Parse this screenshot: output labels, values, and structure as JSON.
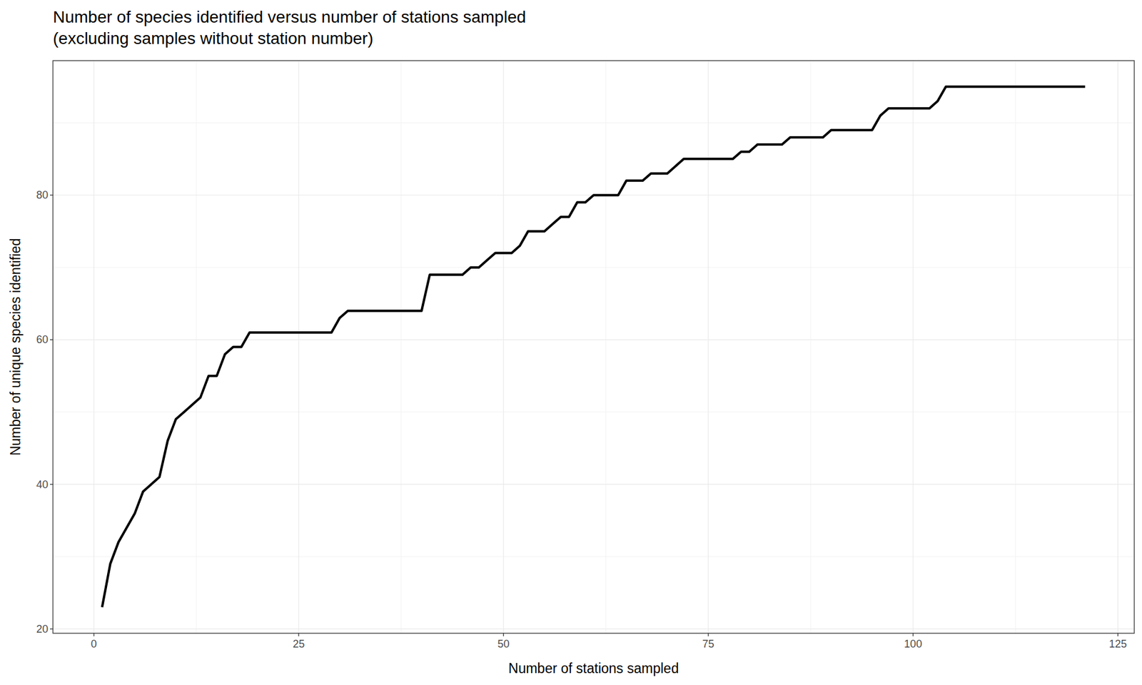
{
  "chart_data": {
    "type": "line",
    "title": "Number of species identified versus number of stations sampled\n(excluding samples without station number)",
    "x_label": "Number of stations sampled",
    "y_label": "Number of unique species identified",
    "x": [
      1,
      2,
      3,
      4,
      5,
      6,
      7,
      8,
      9,
      10,
      11,
      12,
      13,
      14,
      15,
      16,
      17,
      18,
      19,
      20,
      21,
      22,
      23,
      24,
      25,
      26,
      27,
      28,
      29,
      30,
      31,
      32,
      33,
      34,
      35,
      36,
      37,
      38,
      39,
      40,
      41,
      42,
      43,
      44,
      45,
      46,
      47,
      48,
      49,
      50,
      51,
      52,
      53,
      54,
      55,
      56,
      57,
      58,
      59,
      60,
      61,
      62,
      63,
      64,
      65,
      66,
      67,
      68,
      69,
      70,
      71,
      72,
      73,
      74,
      75,
      76,
      77,
      78,
      79,
      80,
      81,
      82,
      83,
      84,
      85,
      86,
      87,
      88,
      89,
      90,
      91,
      92,
      93,
      94,
      95,
      96,
      97,
      98,
      99,
      100,
      101,
      102,
      103,
      104,
      105,
      106,
      107,
      108,
      109,
      110,
      111,
      112,
      113,
      114,
      115,
      116,
      117,
      118,
      119,
      120,
      121
    ],
    "values": [
      23,
      29,
      32,
      34,
      36,
      39,
      40,
      41,
      46,
      49,
      50,
      51,
      52,
      55,
      55,
      58,
      59,
      59,
      61,
      61,
      61,
      61,
      61,
      61,
      61,
      61,
      61,
      61,
      61,
      63,
      64,
      64,
      64,
      64,
      64,
      64,
      64,
      64,
      64,
      64,
      69,
      69,
      69,
      69,
      69,
      70,
      70,
      71,
      72,
      72,
      72,
      73,
      75,
      75,
      75,
      76,
      77,
      77,
      79,
      79,
      80,
      80,
      80,
      80,
      82,
      82,
      82,
      83,
      83,
      83,
      84,
      85,
      85,
      85,
      85,
      85,
      85,
      85,
      86,
      86,
      87,
      87,
      87,
      87,
      88,
      88,
      88,
      88,
      88,
      89,
      89,
      89,
      89,
      89,
      89,
      91,
      92,
      92,
      92,
      92,
      92,
      92,
      93,
      95,
      95,
      95,
      95,
      95,
      95,
      95,
      95,
      95,
      95,
      95,
      95,
      95,
      95,
      95,
      95,
      95,
      95
    ],
    "color": "#000000",
    "xlim": [
      -5,
      127
    ],
    "ylim": [
      19.4,
      98.6
    ],
    "xticks": [
      0,
      25,
      50,
      75,
      100,
      125
    ],
    "yticks": [
      20,
      40,
      60,
      80
    ],
    "grid": true
  }
}
